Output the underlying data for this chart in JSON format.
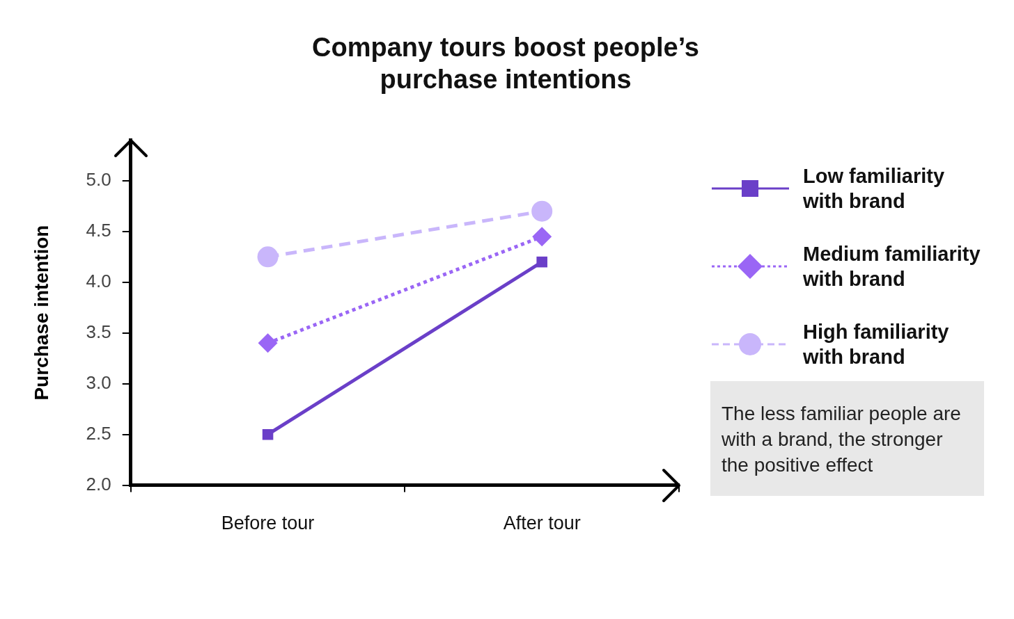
{
  "chart_data": {
    "type": "line",
    "title": "Company tours boost people’s purchase intentions",
    "ylabel": "Purchase intention",
    "categories": [
      "Before tour",
      "After tour"
    ],
    "series": [
      {
        "name": "Low familiarity with brand",
        "color": "#6a3fc8",
        "values": [
          2.5,
          4.2
        ],
        "marker": "square",
        "line_style": "solid"
      },
      {
        "name": "Medium familiarity with brand",
        "color": "#9a66f5",
        "values": [
          3.4,
          4.45
        ],
        "marker": "diamond",
        "line_style": "dotted"
      },
      {
        "name": "High familiarity with brand",
        "color": "#c9b6fb",
        "values": [
          4.25,
          4.7
        ],
        "marker": "circle",
        "line_style": "dashed"
      }
    ],
    "ylim": [
      2.0,
      5.4
    ],
    "yticks": [
      {
        "value": 2,
        "label": "2.0"
      },
      {
        "value": 2.5,
        "label": "2.5"
      },
      {
        "value": 3,
        "label": "3.0"
      },
      {
        "value": 3.5,
        "label": "3.5"
      },
      {
        "value": 4,
        "label": "4.0"
      },
      {
        "value": 4.5,
        "label": "4.5"
      },
      {
        "value": 5,
        "label": "5.0"
      }
    ],
    "grid": false,
    "legend": "right",
    "annotations": [
      "The less familiar people are with a brand, the stronger the positive effect"
    ]
  }
}
